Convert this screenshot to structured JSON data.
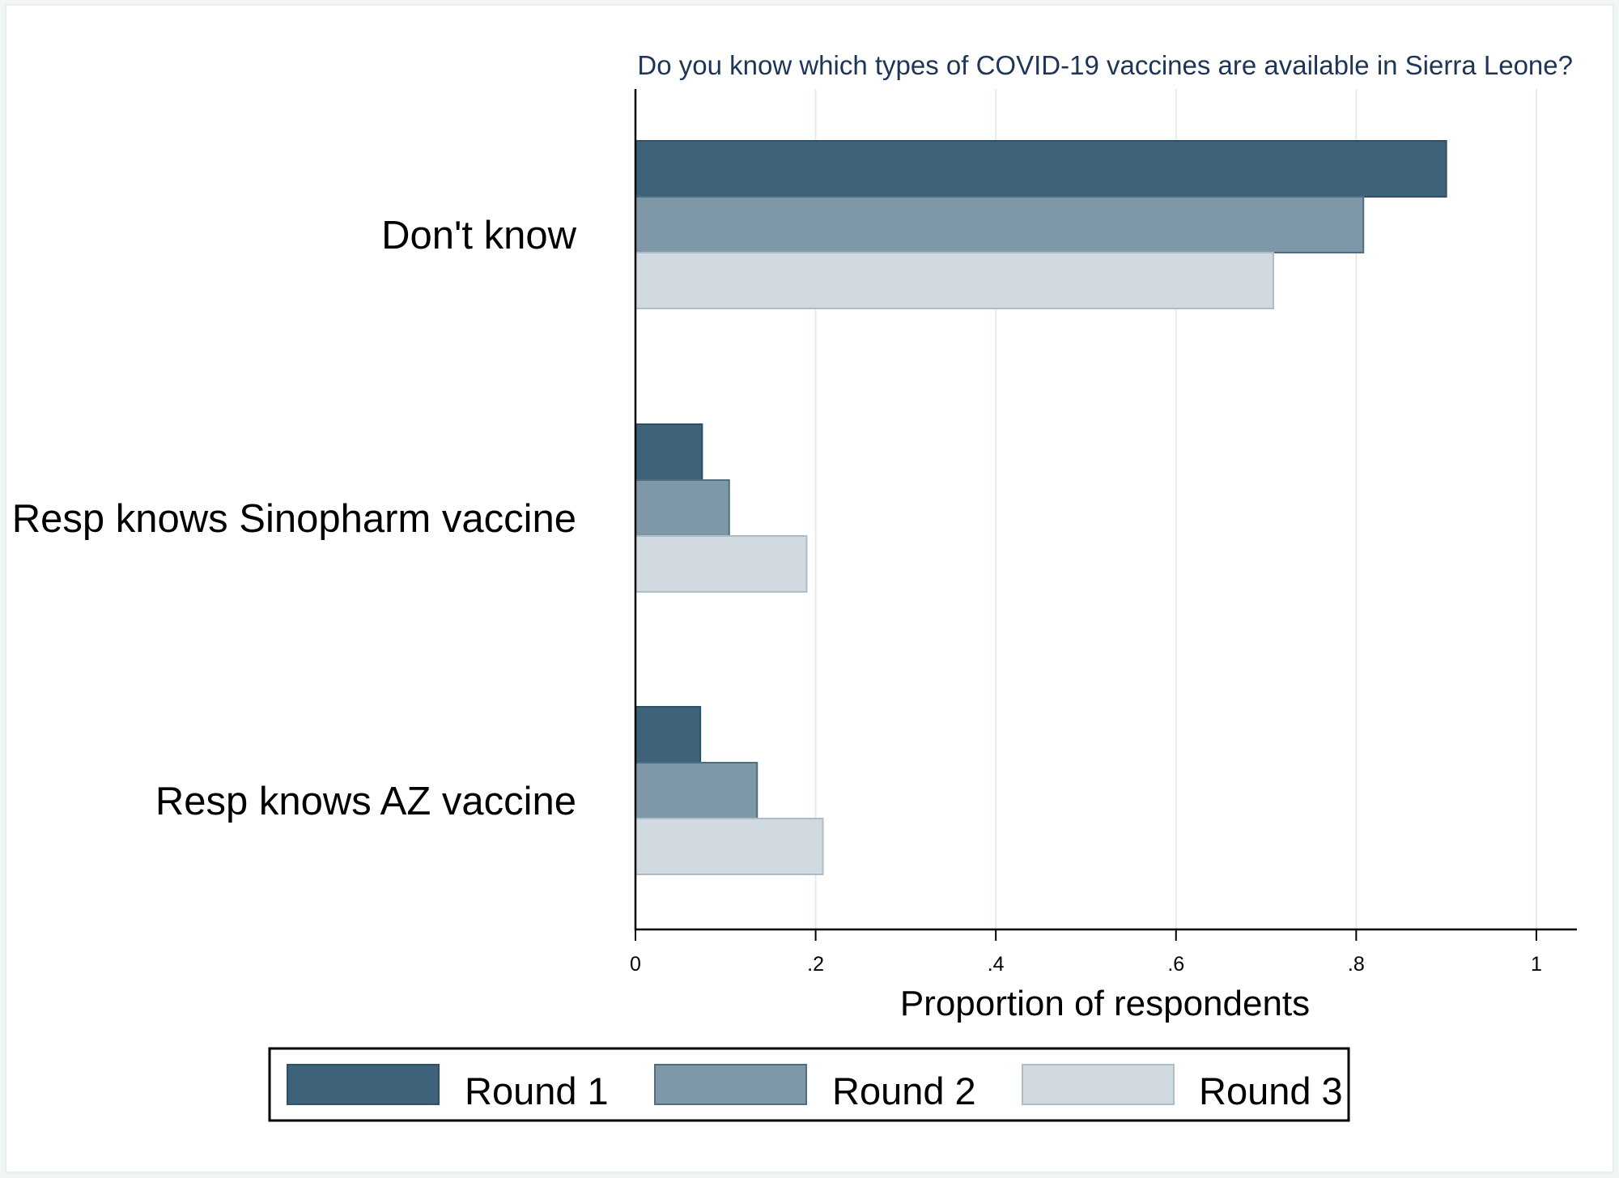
{
  "chart_data": {
    "type": "bar",
    "orientation": "horizontal",
    "title": "Do you know which types of COVID-19 vaccines are available in Sierra Leone?",
    "xlabel": "Proportion of respondents",
    "ylabel": "",
    "categories": [
      "Don't know",
      "Resp knows Sinopharm vaccine",
      "Resp knows AZ vaccine"
    ],
    "series": [
      {
        "name": "Round 1",
        "color": "#3f627b",
        "values": [
          0.9,
          0.074,
          0.072
        ]
      },
      {
        "name": "Round 2",
        "color": "#7f98a7",
        "values": [
          0.808,
          0.104,
          0.135
        ]
      },
      {
        "name": "Round 3",
        "color": "#d1d9e1",
        "values": [
          0.708,
          0.19,
          0.208
        ]
      }
    ],
    "xlim": [
      0,
      1.045
    ],
    "xticks": [
      0,
      0.2,
      0.4,
      0.6,
      0.8,
      1
    ],
    "xtick_labels": [
      "0",
      ".2",
      ".4",
      ".6",
      ".8",
      "1"
    ],
    "grid": true,
    "legend": "bottom",
    "colors": {
      "grid": "#e4ecec",
      "axis": "#000000",
      "title": "#1d3557"
    }
  }
}
